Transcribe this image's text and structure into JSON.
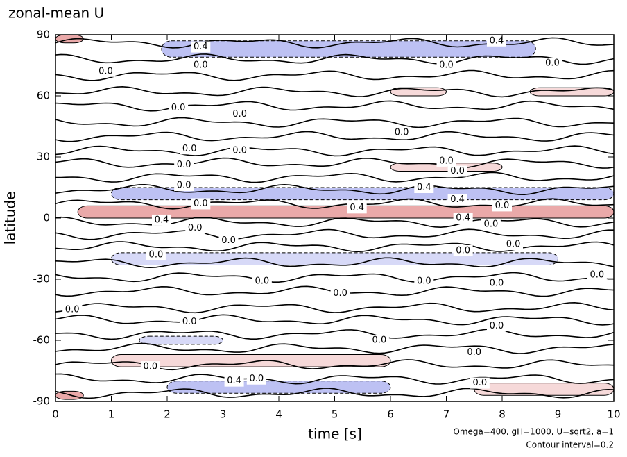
{
  "chart_data": {
    "type": "contour",
    "title": "zonal-mean U",
    "x_label": "time [s]",
    "y_label": "latitude",
    "annotations": [
      "Omega=400, gH=1000, U=sqrt2, a=1",
      "Contour interval=0.2"
    ],
    "xlim": [
      0,
      10
    ],
    "ylim": [
      -90,
      90
    ],
    "xticks": [
      0,
      1,
      2,
      3,
      4,
      5,
      6,
      7,
      8,
      9,
      10
    ],
    "yticks": [
      -90,
      -60,
      -30,
      0,
      30,
      60,
      90
    ],
    "positive_color": "#e8a0a0",
    "negative_color": "#9aa0ec",
    "patches": [
      {
        "t0": 1.9,
        "t1": 8.6,
        "lat": 83,
        "dlat": 4,
        "value": -0.4
      },
      {
        "t0": 0.4,
        "t1": 10,
        "lat": 3,
        "dlat": 3,
        "value": 0.6
      },
      {
        "t0": 1,
        "t1": 10,
        "lat": 12,
        "dlat": 3,
        "value": -0.4
      },
      {
        "t0": 1,
        "t1": 9,
        "lat": -20,
        "dlat": 3,
        "value": -0.2
      },
      {
        "t0": 6,
        "t1": 8,
        "lat": 25,
        "dlat": 2,
        "value": 0.2
      },
      {
        "t0": 6,
        "t1": 7,
        "lat": 62,
        "dlat": 2,
        "value": 0.2
      },
      {
        "t0": 8.5,
        "t1": 10,
        "lat": 62,
        "dlat": 2,
        "value": 0.2
      },
      {
        "t0": 1,
        "t1": 6,
        "lat": -70,
        "dlat": 3,
        "value": 0.2
      },
      {
        "t0": 7.5,
        "t1": 10,
        "lat": -84,
        "dlat": 3,
        "value": 0.2
      },
      {
        "t0": 2,
        "t1": 6,
        "lat": -83,
        "dlat": 3,
        "value": -0.4
      },
      {
        "t0": 1.5,
        "t1": 3,
        "lat": -60,
        "dlat": 2,
        "value": -0.2
      },
      {
        "t0": 0,
        "t1": 0.5,
        "lat": 88,
        "dlat": 2,
        "value": 0.6
      },
      {
        "t0": 0,
        "t1": 0.5,
        "lat": -87,
        "dlat": 2,
        "value": 0.6
      }
    ],
    "zero_contours": [
      86,
      78,
      70,
      62,
      55,
      47,
      40,
      33,
      27,
      20,
      14,
      7,
      -2,
      -8,
      -14,
      -22,
      -29,
      -36,
      -44,
      -50,
      -57,
      -64,
      -72,
      -79,
      -86
    ],
    "contour_labels": [
      {
        "t": 2.6,
        "lat": 84,
        "value": 0.4,
        "label": "0.4"
      },
      {
        "t": 7.9,
        "lat": 87,
        "value": 0.4,
        "label": "0.4"
      },
      {
        "t": 0.9,
        "lat": 72,
        "value": 0,
        "label": "0.0"
      },
      {
        "t": 2.6,
        "lat": 75,
        "value": 0,
        "label": "0.0"
      },
      {
        "t": 7,
        "lat": 75,
        "value": 0,
        "label": "0.0"
      },
      {
        "t": 8.9,
        "lat": 76,
        "value": 0,
        "label": "0.0"
      },
      {
        "t": 2.2,
        "lat": 54,
        "value": 0,
        "label": "0.0"
      },
      {
        "t": 3.3,
        "lat": 51,
        "value": 0,
        "label": "0.0"
      },
      {
        "t": 6.2,
        "lat": 42,
        "value": 0,
        "label": "0.0"
      },
      {
        "t": 3.3,
        "lat": 33,
        "value": 0,
        "label": "0.0"
      },
      {
        "t": 2.4,
        "lat": 34,
        "value": 0,
        "label": "0.0"
      },
      {
        "t": 2.3,
        "lat": 26,
        "value": 0,
        "label": "0.0"
      },
      {
        "t": 7,
        "lat": 28,
        "value": 0,
        "label": "0.0"
      },
      {
        "t": 7.2,
        "lat": 23,
        "value": 0,
        "label": "0.0"
      },
      {
        "t": 2.3,
        "lat": 16,
        "value": 0,
        "label": "0.0"
      },
      {
        "t": 6.6,
        "lat": 15,
        "value": 0.4,
        "label": "0.4"
      },
      {
        "t": 7.2,
        "lat": 9,
        "value": 0.4,
        "label": "0.4"
      },
      {
        "t": 2.6,
        "lat": 7,
        "value": 0,
        "label": "0.0"
      },
      {
        "t": 5.4,
        "lat": 5,
        "value": 0.4,
        "label": "0.4"
      },
      {
        "t": 8,
        "lat": 6,
        "value": 0,
        "label": "0.0"
      },
      {
        "t": 1.9,
        "lat": -1,
        "value": 0.4,
        "label": "0.4"
      },
      {
        "t": 7.3,
        "lat": 0,
        "value": 0.4,
        "label": "0.4"
      },
      {
        "t": 2.5,
        "lat": -5,
        "value": 0,
        "label": "0.0"
      },
      {
        "t": 7.8,
        "lat": -3,
        "value": 0,
        "label": "0.0"
      },
      {
        "t": 3.1,
        "lat": -11,
        "value": 0,
        "label": "0.0"
      },
      {
        "t": 7.3,
        "lat": -16,
        "value": 0,
        "label": "0.0"
      },
      {
        "t": 8.2,
        "lat": -13,
        "value": 0,
        "label": "0.0"
      },
      {
        "t": 1.8,
        "lat": -18,
        "value": 0,
        "label": "0.0"
      },
      {
        "t": 3.7,
        "lat": -31,
        "value": 0,
        "label": "0.0"
      },
      {
        "t": 6.6,
        "lat": -31,
        "value": 0,
        "label": "0.0"
      },
      {
        "t": 7.9,
        "lat": -32,
        "value": 0,
        "label": "0.0"
      },
      {
        "t": 9.7,
        "lat": -28,
        "value": 0,
        "label": "0.0"
      },
      {
        "t": 5.1,
        "lat": -37,
        "value": 0,
        "label": "0.0"
      },
      {
        "t": 0.3,
        "lat": -45,
        "value": 0,
        "label": "0.0"
      },
      {
        "t": 2.4,
        "lat": -51,
        "value": 0,
        "label": "0.0"
      },
      {
        "t": 7.9,
        "lat": -53,
        "value": 0,
        "label": "0.0"
      },
      {
        "t": 5.8,
        "lat": -60,
        "value": 0,
        "label": "0.0"
      },
      {
        "t": 7.5,
        "lat": -66,
        "value": 0,
        "label": "0.0"
      },
      {
        "t": 1.7,
        "lat": -73,
        "value": 0,
        "label": "0.0"
      },
      {
        "t": 3.2,
        "lat": -80,
        "value": 0.4,
        "label": "0.4"
      },
      {
        "t": 3.6,
        "lat": -79,
        "value": 0,
        "label": "0.0"
      },
      {
        "t": 7.6,
        "lat": -81,
        "value": 0,
        "label": "0.0"
      }
    ]
  }
}
